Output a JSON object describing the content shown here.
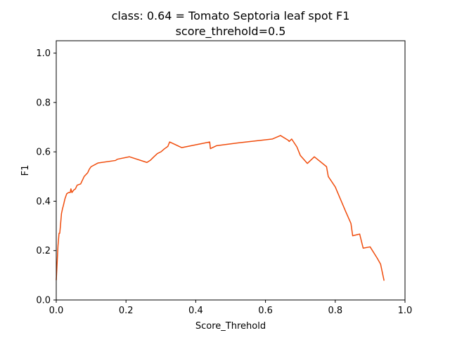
{
  "chart_data": {
    "type": "line",
    "title_lines": [
      "class: 0.64 = Tomato Septoria leaf spot F1",
      "score_threhold=0.5"
    ],
    "xlabel": "Score_Threhold",
    "ylabel": "F1",
    "xlim": [
      0.0,
      1.0
    ],
    "ylim": [
      0.0,
      1.05
    ],
    "xticks": [
      "0.0",
      "0.2",
      "0.4",
      "0.6",
      "0.8",
      "1.0"
    ],
    "yticks": [
      "0.0",
      "0.2",
      "0.4",
      "0.6",
      "0.8",
      "1.0"
    ],
    "xtick_values": [
      0.0,
      0.2,
      0.4,
      0.6,
      0.8,
      1.0
    ],
    "ytick_values": [
      0.0,
      0.2,
      0.4,
      0.6,
      0.8,
      1.0
    ],
    "grid": false,
    "series": [
      {
        "color": "#f04c0c",
        "x": [
          0.0,
          0.005,
          0.008,
          0.01,
          0.012,
          0.015,
          0.018,
          0.02,
          0.025,
          0.03,
          0.035,
          0.04,
          0.042,
          0.045,
          0.05,
          0.055,
          0.06,
          0.07,
          0.075,
          0.08,
          0.09,
          0.095,
          0.1,
          0.12,
          0.17,
          0.175,
          0.21,
          0.26,
          0.27,
          0.28,
          0.29,
          0.3,
          0.31,
          0.32,
          0.325,
          0.36,
          0.44,
          0.442,
          0.46,
          0.52,
          0.62,
          0.643,
          0.665,
          0.668,
          0.675,
          0.69,
          0.7,
          0.72,
          0.74,
          0.775,
          0.78,
          0.8,
          0.83,
          0.845,
          0.85,
          0.87,
          0.88,
          0.9,
          0.92,
          0.93,
          0.94
        ],
        "y": [
          0.08,
          0.22,
          0.27,
          0.27,
          0.3,
          0.35,
          0.37,
          0.38,
          0.41,
          0.43,
          0.435,
          0.435,
          0.45,
          0.435,
          0.445,
          0.45,
          0.465,
          0.47,
          0.485,
          0.5,
          0.515,
          0.53,
          0.54,
          0.555,
          0.565,
          0.57,
          0.58,
          0.557,
          0.566,
          0.58,
          0.593,
          0.6,
          0.612,
          0.622,
          0.64,
          0.617,
          0.64,
          0.613,
          0.625,
          0.636,
          0.652,
          0.666,
          0.647,
          0.642,
          0.652,
          0.62,
          0.585,
          0.553,
          0.58,
          0.54,
          0.5,
          0.458,
          0.358,
          0.31,
          0.26,
          0.267,
          0.21,
          0.215,
          0.17,
          0.145,
          0.078
        ]
      }
    ]
  },
  "colors": {
    "line": "#f04c0c",
    "axes": "#000000",
    "background": "#ffffff"
  }
}
